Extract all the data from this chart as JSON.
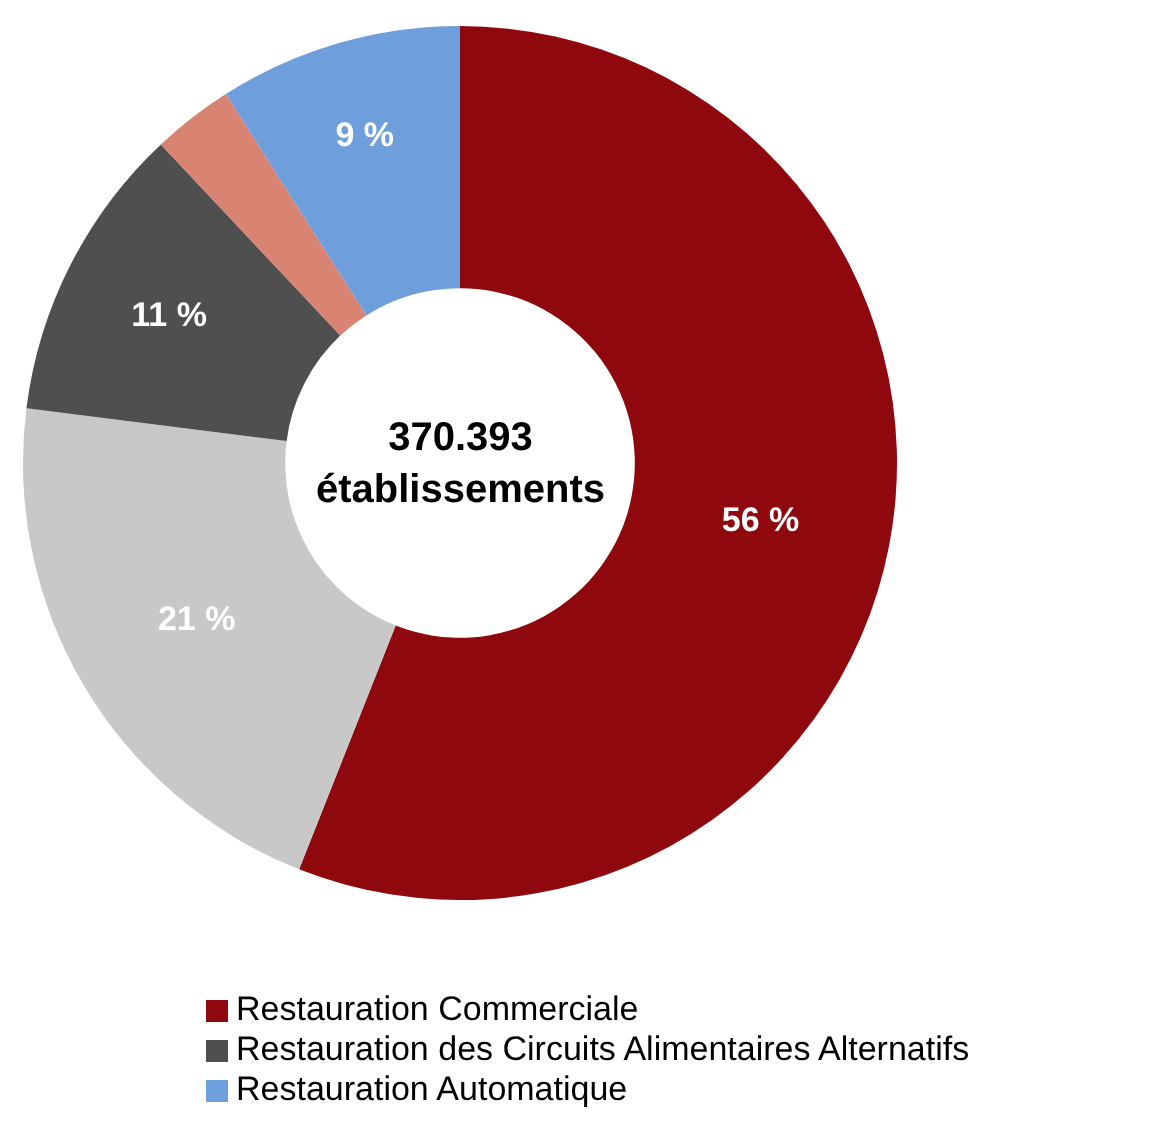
{
  "chart_data": {
    "type": "donut",
    "categories": [
      "Restauration Commerciale",
      null,
      "Restauration des Circuits Alimentaires Alternatifs",
      null,
      "Restauration Automatique"
    ],
    "values": [
      56,
      21,
      11,
      3,
      9
    ],
    "value_labels": [
      "56 %",
      "21 %",
      "11 %",
      null,
      "9 %"
    ],
    "colors": [
      "#8e080d",
      "#c8c8c8",
      "#4f4f4f",
      "#d98372",
      "#6f9edc"
    ],
    "annotations": [
      "370.393\nétablissements"
    ],
    "legend": "bottom"
  }
}
